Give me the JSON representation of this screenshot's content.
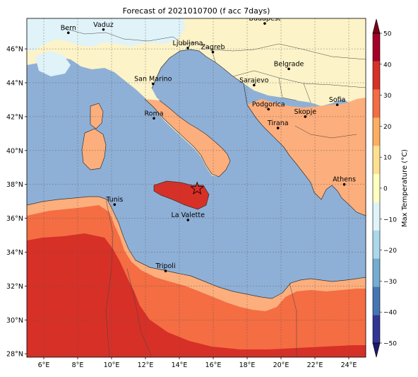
{
  "title": "Forecast of 2021010700 (f acc 7days)",
  "map": {
    "lon_range": [
      5,
      25
    ],
    "lat_range": [
      27.8,
      47.8
    ],
    "lon_ticks": [
      {
        "v": 6,
        "label": "6°E"
      },
      {
        "v": 8,
        "label": "8°E"
      },
      {
        "v": 10,
        "label": "10°E"
      },
      {
        "v": 12,
        "label": "12°E"
      },
      {
        "v": 14,
        "label": "14°E"
      },
      {
        "v": 16,
        "label": "16°E"
      },
      {
        "v": 18,
        "label": "18°E"
      },
      {
        "v": 20,
        "label": "20°E"
      },
      {
        "v": 22,
        "label": "22°E"
      },
      {
        "v": 24,
        "label": "24°E"
      }
    ],
    "lat_ticks": [
      {
        "v": 28,
        "label": "28°N"
      },
      {
        "v": 30,
        "label": "30°N"
      },
      {
        "v": 32,
        "label": "32°N"
      },
      {
        "v": 34,
        "label": "34°N"
      },
      {
        "v": 36,
        "label": "36°N"
      },
      {
        "v": 38,
        "label": "38°N"
      },
      {
        "v": 40,
        "label": "40°N"
      },
      {
        "v": 42,
        "label": "42°N"
      },
      {
        "v": 44,
        "label": "44°N"
      },
      {
        "v": 46,
        "label": "46°N"
      }
    ],
    "cities": [
      {
        "name": "Bern",
        "lon": 7.45,
        "lat": 46.95
      },
      {
        "name": "Vaduz",
        "lon": 9.52,
        "lat": 47.14
      },
      {
        "name": "Budapest",
        "lon": 19.04,
        "lat": 47.5
      },
      {
        "name": "Ljubljana",
        "lon": 14.5,
        "lat": 46.05
      },
      {
        "name": "Zagreb",
        "lon": 15.98,
        "lat": 45.81
      },
      {
        "name": "Belgrade",
        "lon": 20.46,
        "lat": 44.82
      },
      {
        "name": "San Marino",
        "lon": 12.45,
        "lat": 43.94
      },
      {
        "name": "Sarajevo",
        "lon": 18.41,
        "lat": 43.86
      },
      {
        "name": "Sofia",
        "lon": 23.32,
        "lat": 42.7
      },
      {
        "name": "Podgorica",
        "lon": 19.26,
        "lat": 42.44
      },
      {
        "name": "Skopje",
        "lon": 21.43,
        "lat": 42.0
      },
      {
        "name": "Roma",
        "lon": 12.5,
        "lat": 41.9
      },
      {
        "name": "Tirana",
        "lon": 19.82,
        "lat": 41.33
      },
      {
        "name": "Athens",
        "lon": 23.73,
        "lat": 38.0
      },
      {
        "name": "Tunis",
        "lon": 10.18,
        "lat": 36.81
      },
      {
        "name": "La Valette",
        "lon": 14.51,
        "lat": 35.9
      },
      {
        "name": "Tripoli",
        "lon": 13.19,
        "lat": 32.89
      }
    ],
    "marker": {
      "lon": 15.05,
      "lat": 37.75
    }
  },
  "colorbar": {
    "label": "Max Temperature (°C)",
    "min": -50,
    "max": 50,
    "ticks": [
      -50,
      -40,
      -30,
      -20,
      -10,
      0,
      10,
      20,
      30,
      40,
      50
    ],
    "colors": [
      "#313695",
      "#4575b4",
      "#74add1",
      "#abd9e9",
      "#e0f3f8",
      "#ffffbf",
      "#fee090",
      "#fdae61",
      "#f46d43",
      "#d73027",
      "#a50026"
    ],
    "under_color": "#1a1a6e",
    "over_color": "#7a0015"
  },
  "fills": {
    "sea": "#8fb0d6",
    "alps": "#e0f3f8",
    "north_land": "#fdf3c8",
    "warm_land": "#fcae7c",
    "hot_land": "#f46d43",
    "very_hot_land": "#d73027",
    "sicily_hot": "#d73027"
  }
}
